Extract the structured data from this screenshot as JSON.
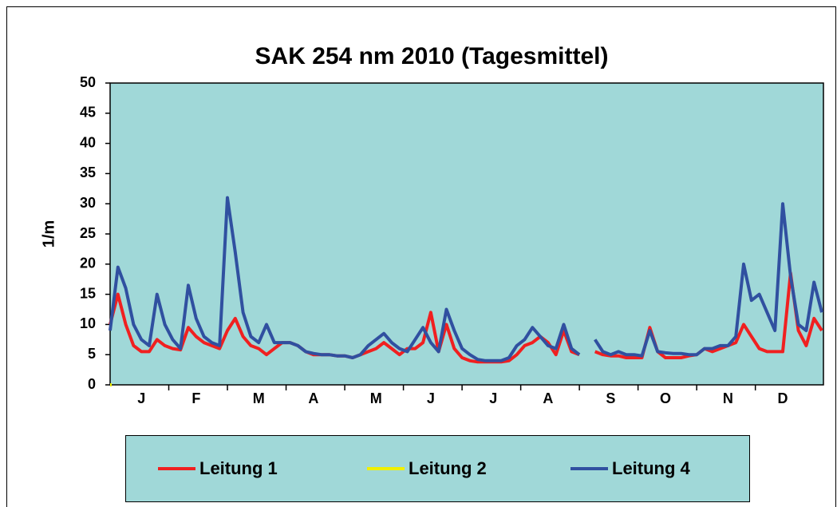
{
  "chart_data": {
    "type": "line",
    "title": "SAK 254 nm 2010 (Tagesmittel)",
    "y_label": "1/m",
    "categories": [
      null,
      null,
      null,
      null,
      "J",
      null,
      null,
      null,
      null,
      null,
      null,
      "F",
      null,
      null,
      null,
      null,
      null,
      null,
      null,
      "M",
      null,
      null,
      null,
      null,
      null,
      null,
      "A",
      null,
      null,
      null,
      null,
      null,
      null,
      null,
      "M",
      null,
      null,
      null,
      null,
      null,
      null,
      "J",
      null,
      null,
      null,
      null,
      null,
      null,
      null,
      "J",
      null,
      null,
      null,
      null,
      null,
      null,
      "A",
      null,
      null,
      null,
      null,
      null,
      null,
      null,
      "S",
      null,
      null,
      null,
      null,
      null,
      null,
      "O",
      null,
      null,
      null,
      null,
      null,
      null,
      null,
      "N",
      null,
      null,
      null,
      null,
      null,
      null,
      "D",
      null,
      null,
      null,
      null,
      null
    ],
    "series": [
      {
        "name": "Leitung 1",
        "color": "#f02020",
        "values": [
          10,
          15,
          10,
          6.5,
          5.5,
          5.5,
          7.5,
          6.5,
          6,
          5.8,
          9.5,
          8,
          7,
          6.5,
          6,
          9,
          11,
          8,
          6.5,
          6,
          5,
          6,
          7,
          7,
          6.5,
          5.5,
          5,
          5,
          5,
          4.8,
          4.8,
          4.5,
          5,
          5.5,
          6,
          7,
          6,
          5,
          6,
          6,
          7,
          12,
          5.5,
          10,
          6,
          4.5,
          4,
          3.8,
          3.8,
          3.8,
          3.8,
          4,
          5,
          6.5,
          7,
          8,
          7,
          5,
          9,
          5.5,
          5,
          null,
          5.5,
          5,
          4.8,
          4.8,
          4.5,
          4.5,
          4.5,
          9.5,
          5.5,
          4.5,
          4.5,
          4.5,
          4.8,
          5,
          6,
          5.5,
          6,
          6.5,
          7,
          10,
          8,
          6,
          5.5,
          5.5,
          5.5,
          18.5,
          9,
          6.5,
          11,
          9
        ]
      },
      {
        "name": "Leitung 2",
        "color": "#f0f000",
        "values": [
          0,
          null,
          null,
          null,
          null,
          null,
          null,
          null,
          null,
          null,
          null,
          null,
          null,
          null,
          null,
          null,
          null,
          null,
          null,
          null,
          null,
          null,
          null,
          null,
          null,
          null,
          null,
          null,
          null,
          null,
          null,
          null,
          null,
          null,
          null,
          null,
          null,
          null,
          null,
          null,
          null,
          null,
          null,
          null,
          null,
          null,
          null,
          null,
          null,
          null,
          null,
          null,
          null,
          null,
          null,
          null,
          null,
          null,
          null,
          null,
          null,
          null,
          null,
          null,
          null,
          null,
          null,
          null,
          null,
          null,
          null,
          null,
          null,
          null,
          null,
          null,
          null,
          null,
          null,
          null,
          null,
          null,
          null,
          null,
          null,
          null,
          null,
          null,
          null,
          null,
          null,
          null
        ]
      },
      {
        "name": "Leitung 4",
        "color": "#3050a0",
        "values": [
          9,
          19.5,
          16,
          10,
          7.5,
          6.5,
          15,
          10,
          7.5,
          6,
          16.5,
          11,
          8,
          7,
          6.5,
          31,
          22,
          12,
          8,
          7,
          10,
          7,
          7,
          7,
          6.5,
          5.5,
          5.2,
          5,
          5,
          4.8,
          4.8,
          4.5,
          5,
          6.5,
          7.5,
          8.5,
          7,
          6,
          5.5,
          7.5,
          9.5,
          7,
          5.5,
          12.5,
          9,
          6,
          5,
          4.2,
          4,
          4,
          4,
          4.5,
          6.5,
          7.5,
          9.5,
          8,
          6.5,
          6,
          10,
          6,
          5,
          null,
          7.5,
          5.5,
          5,
          5.5,
          5,
          5,
          4.8,
          9,
          5.5,
          5.3,
          5.2,
          5.2,
          5,
          5,
          6,
          6,
          6.5,
          6.5,
          8,
          20,
          14,
          15,
          12,
          9,
          30,
          18,
          10,
          9,
          17,
          12
        ]
      }
    ],
    "ylim": [
      0,
      50
    ],
    "yticks": [
      0,
      5,
      10,
      15,
      20,
      25,
      30,
      35,
      40,
      45,
      50
    ],
    "grid": false
  }
}
